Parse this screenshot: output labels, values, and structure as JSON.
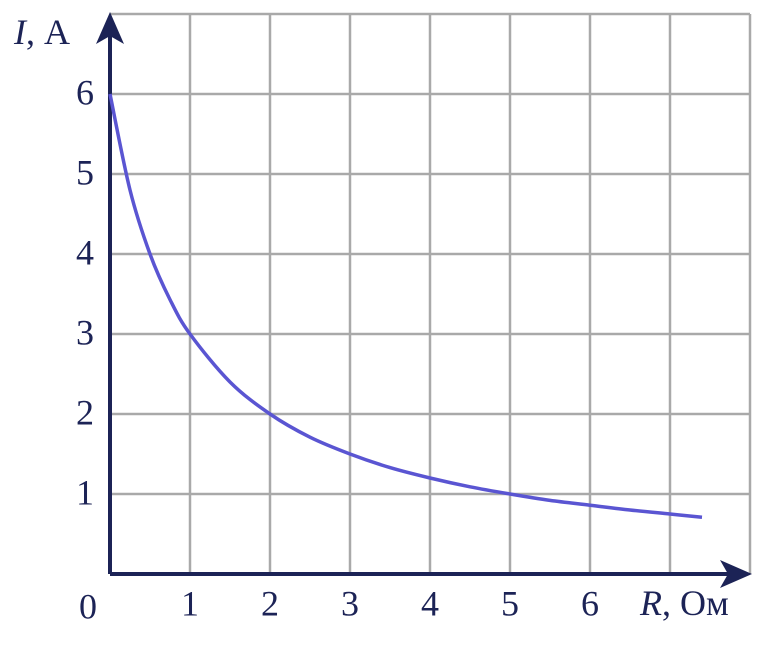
{
  "chart_data": {
    "type": "line",
    "x_label": "R, Ом",
    "y_label": "I, А",
    "x": [
      0,
      0.25,
      0.5,
      0.75,
      1,
      1.5,
      2,
      2.5,
      3,
      3.5,
      4,
      4.5,
      5,
      5.5,
      6,
      6.5,
      7,
      7.4
    ],
    "series": [
      {
        "color": "#5a55d2",
        "values": [
          6,
          4.8,
          4,
          3.43,
          3,
          2.4,
          2,
          1.71,
          1.5,
          1.33,
          1.2,
          1.09,
          1,
          0.92,
          0.86,
          0.8,
          0.75,
          0.71
        ]
      }
    ],
    "xlim": [
      0,
      8
    ],
    "ylim": [
      0,
      7
    ],
    "xticks": [
      0,
      1,
      2,
      3,
      4,
      5,
      6
    ],
    "yticks": [
      1,
      2,
      3,
      4,
      5,
      6
    ],
    "xgrid": [
      1,
      2,
      3,
      4,
      5,
      6,
      7,
      8
    ],
    "ygrid": [
      1,
      2,
      3,
      4,
      5,
      6,
      7
    ],
    "grid": true,
    "axis_color": "#1c2356",
    "grid_color": "#a9a9a9"
  }
}
